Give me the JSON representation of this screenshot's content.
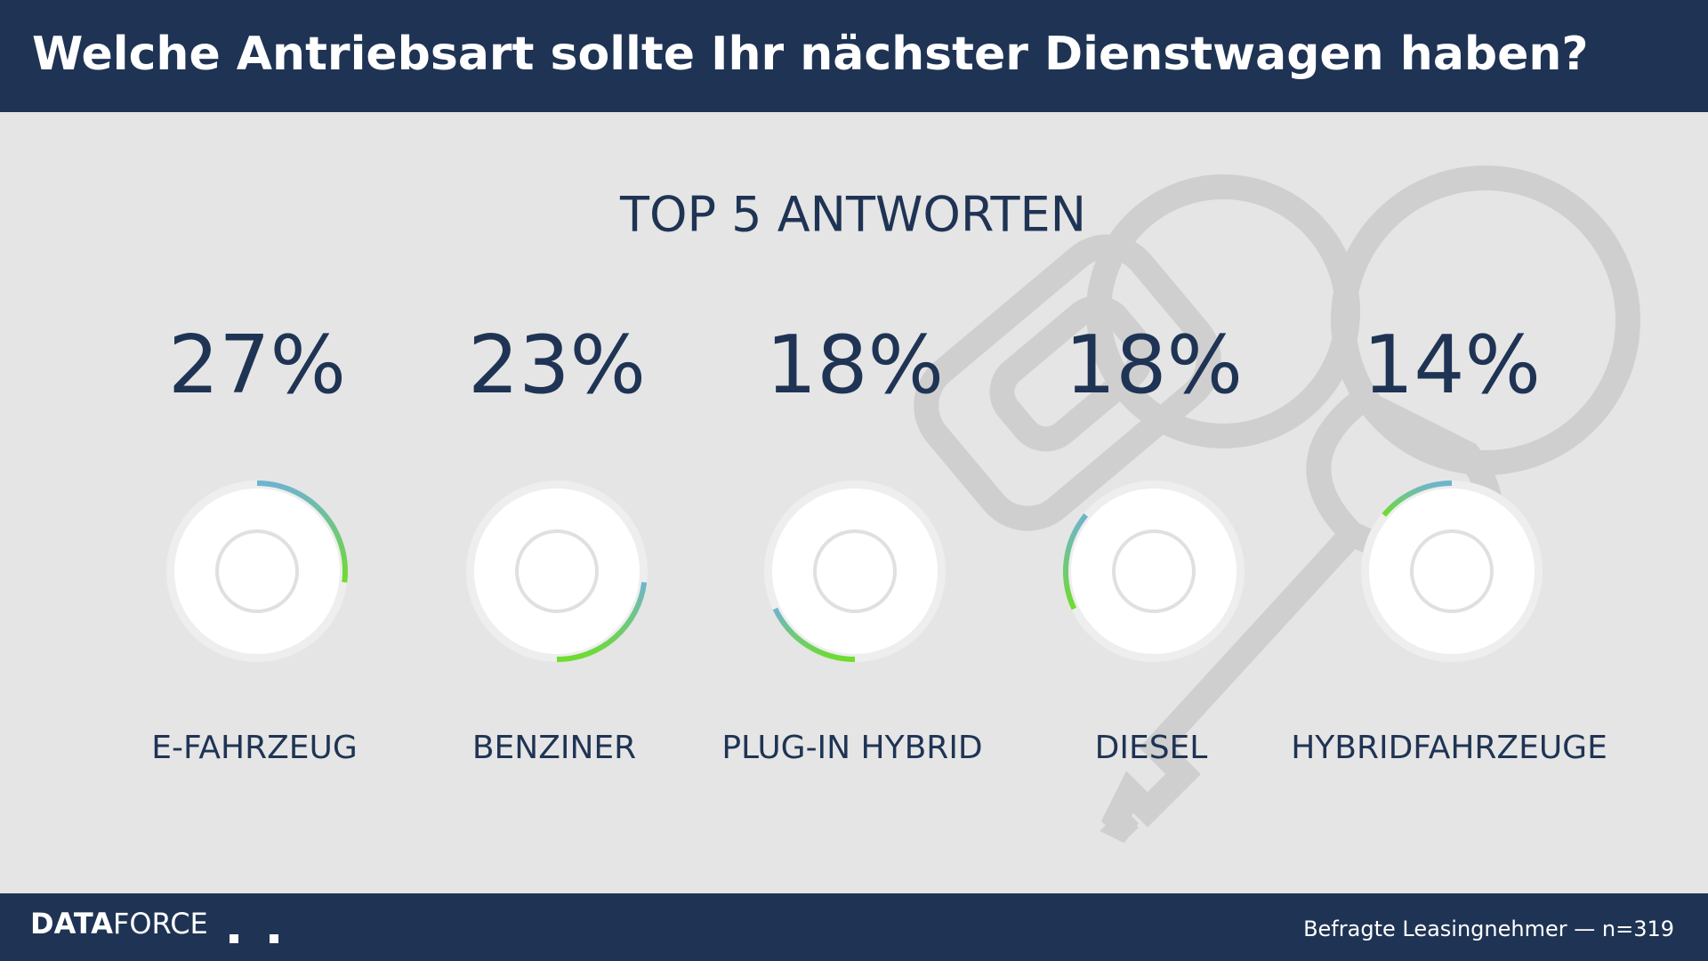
{
  "header": {
    "title": "Welche Antriebsart sollte Ihr nächster Dienstwagen haben?"
  },
  "chart_data": {
    "type": "ring",
    "subtitle": "TOP 5 ANTWORTEN",
    "categories": [
      "E-FAHRZEUG",
      "BENZINER",
      "PLUG-IN HYBRID",
      "DIESEL",
      "HYBRIDFAHRZEUGE"
    ],
    "values": [
      27,
      23,
      18,
      18,
      14
    ],
    "value_labels": [
      "27%",
      "23%",
      "18%",
      "18%",
      "14%"
    ],
    "ylim": [
      0,
      100
    ],
    "colors": [
      "#6fb3cf",
      "#6fdc2e"
    ]
  },
  "footer": {
    "logo_bold": "DATA",
    "logo_light": "FORCE",
    "note": "Befragte Leasingnehmer — n=319"
  }
}
